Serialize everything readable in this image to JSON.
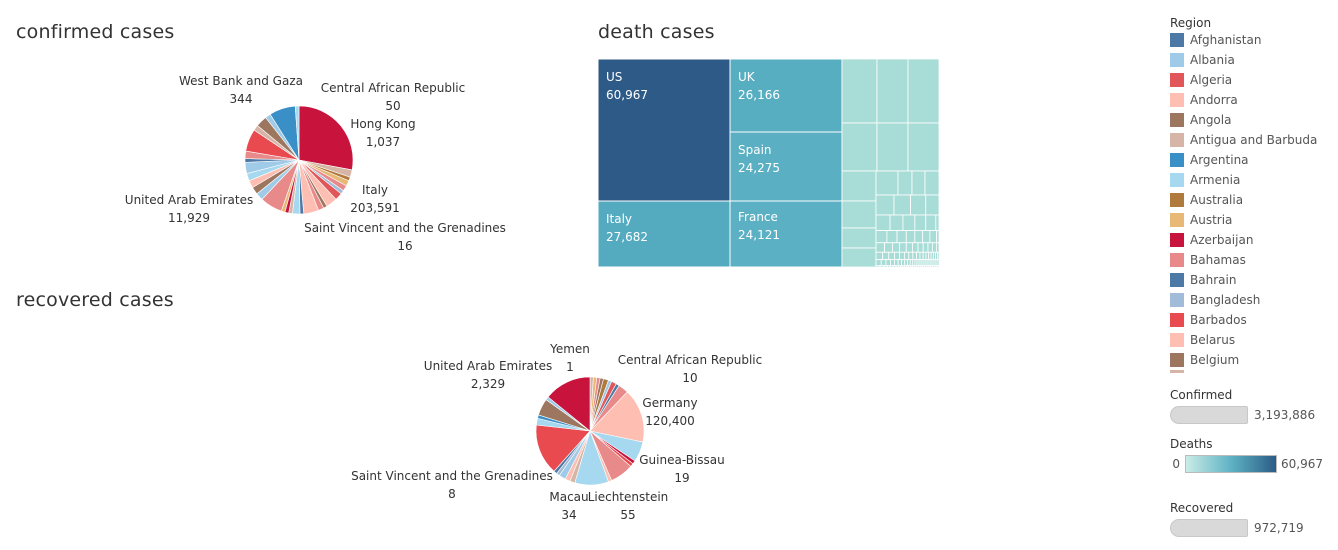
{
  "titles": {
    "confirmed": "confirmed cases",
    "death": "death cases",
    "recovered": "recovered cases"
  },
  "legend": {
    "title": "Region",
    "items": [
      {
        "label": "Afghanistan",
        "color": "#4e79a7"
      },
      {
        "label": "Albania",
        "color": "#a0cbe8"
      },
      {
        "label": "Algeria",
        "color": "#e15759"
      },
      {
        "label": "Andorra",
        "color": "#ffbeb2"
      },
      {
        "label": "Angola",
        "color": "#9d7660"
      },
      {
        "label": "Antigua and Barbuda",
        "color": "#d7b5a6"
      },
      {
        "label": "Argentina",
        "color": "#3a8fc7"
      },
      {
        "label": "Armenia",
        "color": "#a6d8f0"
      },
      {
        "label": "Australia",
        "color": "#b07a3e"
      },
      {
        "label": "Austria",
        "color": "#e8b877"
      },
      {
        "label": "Azerbaijan",
        "color": "#c8143c"
      },
      {
        "label": "Bahamas",
        "color": "#e88a8a"
      },
      {
        "label": "Bahrain",
        "color": "#4e79a7"
      },
      {
        "label": "Bangladesh",
        "color": "#a0bcd8"
      },
      {
        "label": "Barbados",
        "color": "#e84a50"
      },
      {
        "label": "Belarus",
        "color": "#ffbeb2"
      },
      {
        "label": "Belgium",
        "color": "#9d7660"
      }
    ],
    "cut_color": "#d7b5a6",
    "confirmed": {
      "title": "Confirmed",
      "max": "3,193,886"
    },
    "deaths": {
      "title": "Deaths",
      "min": "0",
      "max": "60,967"
    },
    "recovered": {
      "title": "Recovered",
      "max": "972,719"
    }
  },
  "chart_data": [
    {
      "type": "pie",
      "title": "confirmed cases",
      "slices": [
        {
          "label": "Azerbaijan",
          "value": 25,
          "color": "#c8143c"
        },
        {
          "label": "",
          "value": 2,
          "color": "#d7b5a6"
        },
        {
          "label": "",
          "value": 1,
          "color": "#b07a3e"
        },
        {
          "label": "",
          "value": 1.5,
          "color": "#e8b877"
        },
        {
          "label": "",
          "value": 1.5,
          "color": "#e88a8a"
        },
        {
          "label": "",
          "value": 1,
          "color": "#a0bcd8"
        },
        {
          "label": "",
          "value": 2,
          "color": "#e15759"
        },
        {
          "label": "",
          "value": 3,
          "color": "#ffbeb2"
        },
        {
          "label": "",
          "value": 1,
          "color": "#9d7660"
        },
        {
          "label": "",
          "value": 1.5,
          "color": "#e88a8a"
        },
        {
          "label": "",
          "value": 4,
          "color": "#ffbeb2"
        },
        {
          "label": "",
          "value": 1,
          "color": "#4e79a7"
        },
        {
          "label": "",
          "value": 2,
          "color": "#a6d8f0"
        },
        {
          "label": "",
          "value": 1,
          "color": "#d7b5a6"
        },
        {
          "label": "",
          "value": 1,
          "color": "#c8143c"
        },
        {
          "label": "",
          "value": 1,
          "color": "#e8b877"
        },
        {
          "label": "Italy",
          "value": 6,
          "color": "#e88a8a"
        },
        {
          "label": "",
          "value": 2,
          "color": "#a0cbe8"
        },
        {
          "label": "",
          "value": 2,
          "color": "#9d7660"
        },
        {
          "label": "",
          "value": 2,
          "color": "#ffbeb2"
        },
        {
          "label": "",
          "value": 2,
          "color": "#a6d8f0"
        },
        {
          "label": "",
          "value": 3,
          "color": "#a0cbe8"
        },
        {
          "label": "",
          "value": 1,
          "color": "#4e79a7"
        },
        {
          "label": "",
          "value": 2,
          "color": "#e88a8a"
        },
        {
          "label": "",
          "value": 6,
          "color": "#e84a50"
        },
        {
          "label": "",
          "value": 1.5,
          "color": "#d7b5a6"
        },
        {
          "label": "",
          "value": 3,
          "color": "#9d7660"
        },
        {
          "label": "",
          "value": 1.5,
          "color": "#a0cbe8"
        },
        {
          "label": "",
          "value": 7,
          "color": "#3a8fc7"
        },
        {
          "label": "",
          "value": 1,
          "color": "#a6d8f0"
        }
      ],
      "labels": [
        {
          "name": "West Bank and Gaza",
          "value": "344"
        },
        {
          "name": "Central African Republic",
          "value": "50"
        },
        {
          "name": "Hong Kong",
          "value": "1,037"
        },
        {
          "name": "Italy",
          "value": "203,591"
        },
        {
          "name": "United Arab Emirates",
          "value": "11,929"
        },
        {
          "name": "Saint Vincent and the Grenadines",
          "value": "16"
        }
      ]
    },
    {
      "type": "treemap",
      "title": "death cases",
      "color_range": [
        0,
        60967
      ],
      "cells": [
        {
          "label": "US",
          "value": 60967
        },
        {
          "label": "UK",
          "value": 26166
        },
        {
          "label": "Spain",
          "value": 24275
        },
        {
          "label": "Italy",
          "value": 27682
        },
        {
          "label": "France",
          "value": 24121
        }
      ]
    },
    {
      "type": "pie",
      "title": "recovered cases",
      "slices": [
        {
          "label": "",
          "value": 1,
          "color": "#d7b5a6"
        },
        {
          "label": "",
          "value": 1,
          "color": "#e8b877"
        },
        {
          "label": "",
          "value": 1,
          "color": "#e88a8a"
        },
        {
          "label": "",
          "value": 1,
          "color": "#9d7660"
        },
        {
          "label": "",
          "value": 1.5,
          "color": "#b07a3e"
        },
        {
          "label": "",
          "value": 1,
          "color": "#a0cbe8"
        },
        {
          "label": "",
          "value": 1.5,
          "color": "#e15759"
        },
        {
          "label": "",
          "value": 1,
          "color": "#4e79a7"
        },
        {
          "label": "",
          "value": 3,
          "color": "#e88a8a"
        },
        {
          "label": "Germany",
          "value": 16,
          "color": "#ffbeb2"
        },
        {
          "label": "",
          "value": 6,
          "color": "#a6d8f0"
        },
        {
          "label": "",
          "value": 1,
          "color": "#c8143c"
        },
        {
          "label": "",
          "value": 1,
          "color": "#e84a50"
        },
        {
          "label": "",
          "value": 7,
          "color": "#e88a8a"
        },
        {
          "label": "",
          "value": 1,
          "color": "#ffbeb2"
        },
        {
          "label": "",
          "value": 10,
          "color": "#a6d8f0"
        },
        {
          "label": "",
          "value": 1.5,
          "color": "#d7b5a6"
        },
        {
          "label": "",
          "value": 1.5,
          "color": "#ffbeb2"
        },
        {
          "label": "",
          "value": 2,
          "color": "#a0cbe8"
        },
        {
          "label": "",
          "value": 1,
          "color": "#a0bcd8"
        },
        {
          "label": "",
          "value": 1,
          "color": "#4e79a7"
        },
        {
          "label": "",
          "value": 15,
          "color": "#e84a50"
        },
        {
          "label": "",
          "value": 2,
          "color": "#a6d8f0"
        },
        {
          "label": "",
          "value": 1,
          "color": "#3a8fc7"
        },
        {
          "label": "",
          "value": 5,
          "color": "#9d7660"
        },
        {
          "label": "",
          "value": 1,
          "color": "#a0cbe8"
        },
        {
          "label": "United Arab Emirates",
          "value": 14,
          "color": "#c8143c"
        }
      ],
      "labels": [
        {
          "name": "Yemen",
          "value": "1"
        },
        {
          "name": "Central African Republic",
          "value": "10"
        },
        {
          "name": "United Arab Emirates",
          "value": "2,329"
        },
        {
          "name": "Germany",
          "value": "120,400"
        },
        {
          "name": "Guinea-Bissau",
          "value": "19"
        },
        {
          "name": "Saint Vincent and the Grenadines",
          "value": "8"
        },
        {
          "name": "Macau",
          "value": "34"
        },
        {
          "name": "Liechtenstein",
          "value": "55"
        }
      ]
    }
  ]
}
